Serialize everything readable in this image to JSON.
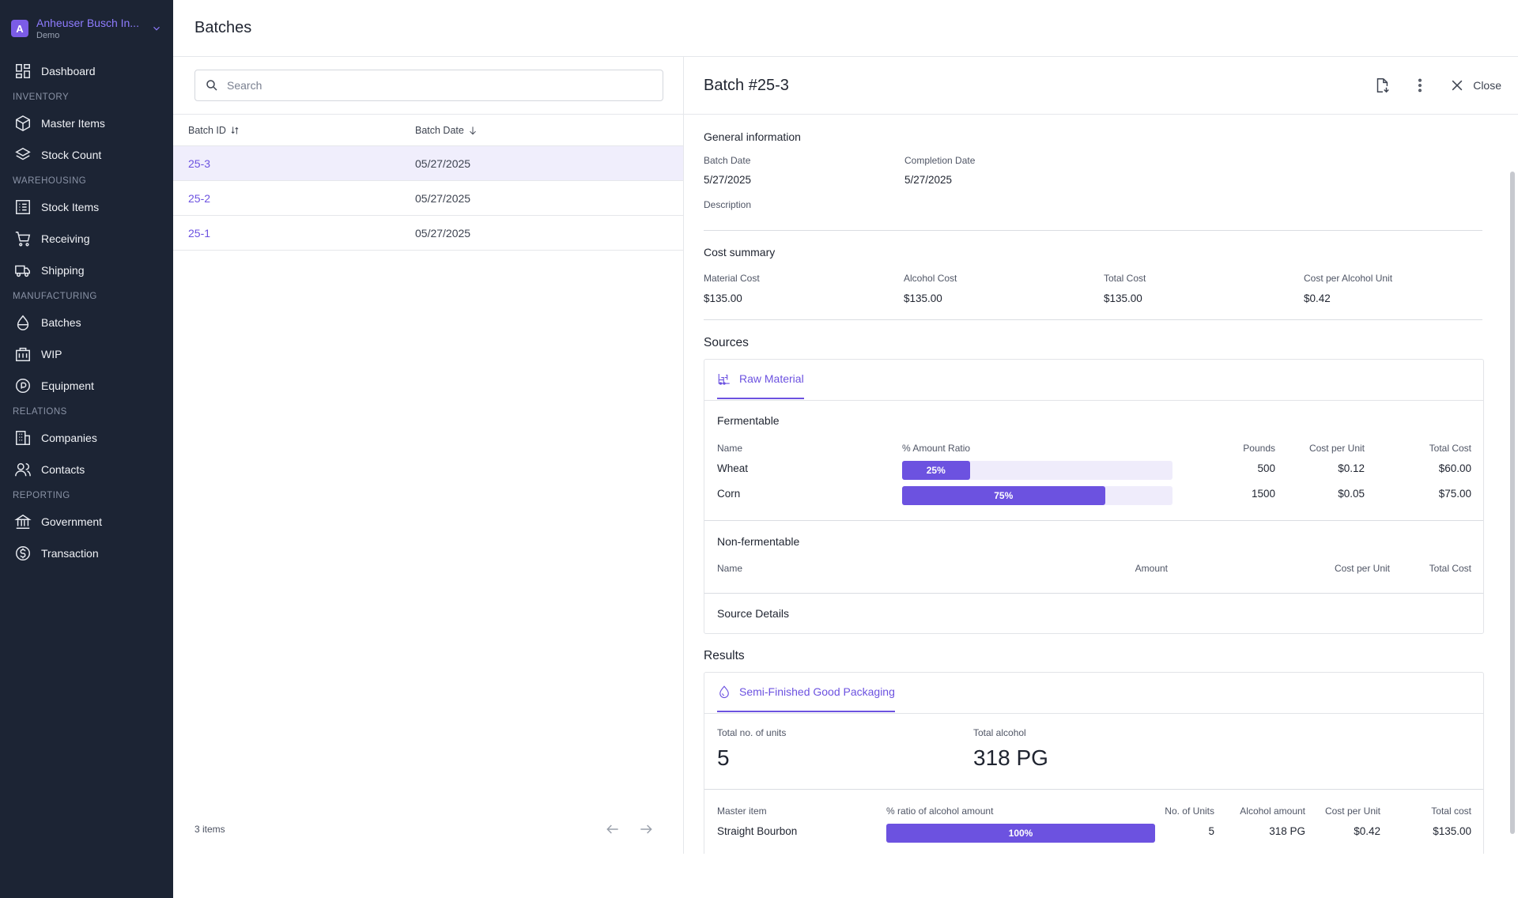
{
  "org": {
    "initial": "A",
    "name": "Anheuser Busch In...",
    "sub": "Demo"
  },
  "nav": {
    "dashboard": "Dashboard",
    "sec_inventory": "INVENTORY",
    "master_items": "Master Items",
    "stock_count": "Stock Count",
    "sec_warehousing": "WAREHOUSING",
    "stock_items": "Stock Items",
    "receiving": "Receiving",
    "shipping": "Shipping",
    "sec_manufacturing": "MANUFACTURING",
    "batches": "Batches",
    "wip": "WIP",
    "equipment": "Equipment",
    "sec_relations": "RELATIONS",
    "companies": "Companies",
    "contacts": "Contacts",
    "sec_reporting": "REPORTING",
    "government": "Government",
    "transaction": "Transaction"
  },
  "page": {
    "title": "Batches"
  },
  "search": {
    "placeholder": "Search"
  },
  "list": {
    "col_id": "Batch ID",
    "col_date": "Batch Date",
    "rows": [
      {
        "id": "25-3",
        "date": "05/27/2025"
      },
      {
        "id": "25-2",
        "date": "05/27/2025"
      },
      {
        "id": "25-1",
        "date": "05/27/2025"
      }
    ],
    "count": "3 items"
  },
  "detail": {
    "title": "Batch #25-3",
    "close_label": "Close",
    "general": {
      "title": "General information",
      "batch_date_label": "Batch Date",
      "batch_date": "5/27/2025",
      "completion_date_label": "Completion Date",
      "completion_date": "5/27/2025",
      "description_label": "Description"
    },
    "cost": {
      "title": "Cost summary",
      "material_label": "Material Cost",
      "material": "$135.00",
      "alcohol_label": "Alcohol Cost",
      "alcohol": "$135.00",
      "total_label": "Total Cost",
      "total": "$135.00",
      "per_unit_label": "Cost per Alcohol Unit",
      "per_unit": "$0.42"
    },
    "sources": {
      "title": "Sources",
      "tab": "Raw Material",
      "fermentable": {
        "title": "Fermentable",
        "h_name": "Name",
        "h_ratio": "% Amount Ratio",
        "h_pounds": "Pounds",
        "h_cpu": "Cost per Unit",
        "h_total": "Total Cost",
        "rows": [
          {
            "name": "Wheat",
            "ratio": 0.25,
            "ratio_label": "25%",
            "pounds": "500",
            "cpu": "$0.12",
            "total": "$60.00"
          },
          {
            "name": "Corn",
            "ratio": 0.75,
            "ratio_label": "75%",
            "pounds": "1500",
            "cpu": "$0.05",
            "total": "$75.00"
          }
        ]
      },
      "nonfermentable": {
        "title": "Non-fermentable",
        "h_name": "Name",
        "h_amount": "Amount",
        "h_cpu": "Cost per Unit",
        "h_total": "Total Cost"
      },
      "source_details": "Source Details"
    },
    "results": {
      "title": "Results",
      "tab": "Semi-Finished Good Packaging",
      "units_label": "Total no. of units",
      "units": "5",
      "alcohol_label": "Total alcohol",
      "alcohol": "318 PG",
      "h_master": "Master item",
      "h_ratio": "% ratio of alcohol amount",
      "h_units": "No. of Units",
      "h_alcohol": "Alcohol amount",
      "h_cpu": "Cost per Unit",
      "h_total": "Total cost",
      "row": {
        "master": "Straight Bourbon",
        "ratio": 1.0,
        "ratio_label": "100%",
        "units": "5",
        "alcohol": "318 PG",
        "cpu": "$0.42",
        "total": "$135.00"
      }
    }
  },
  "colors": {
    "sidebar": "#1c2434",
    "accent": "#6c52e0",
    "accent_light": "#efecfb"
  }
}
